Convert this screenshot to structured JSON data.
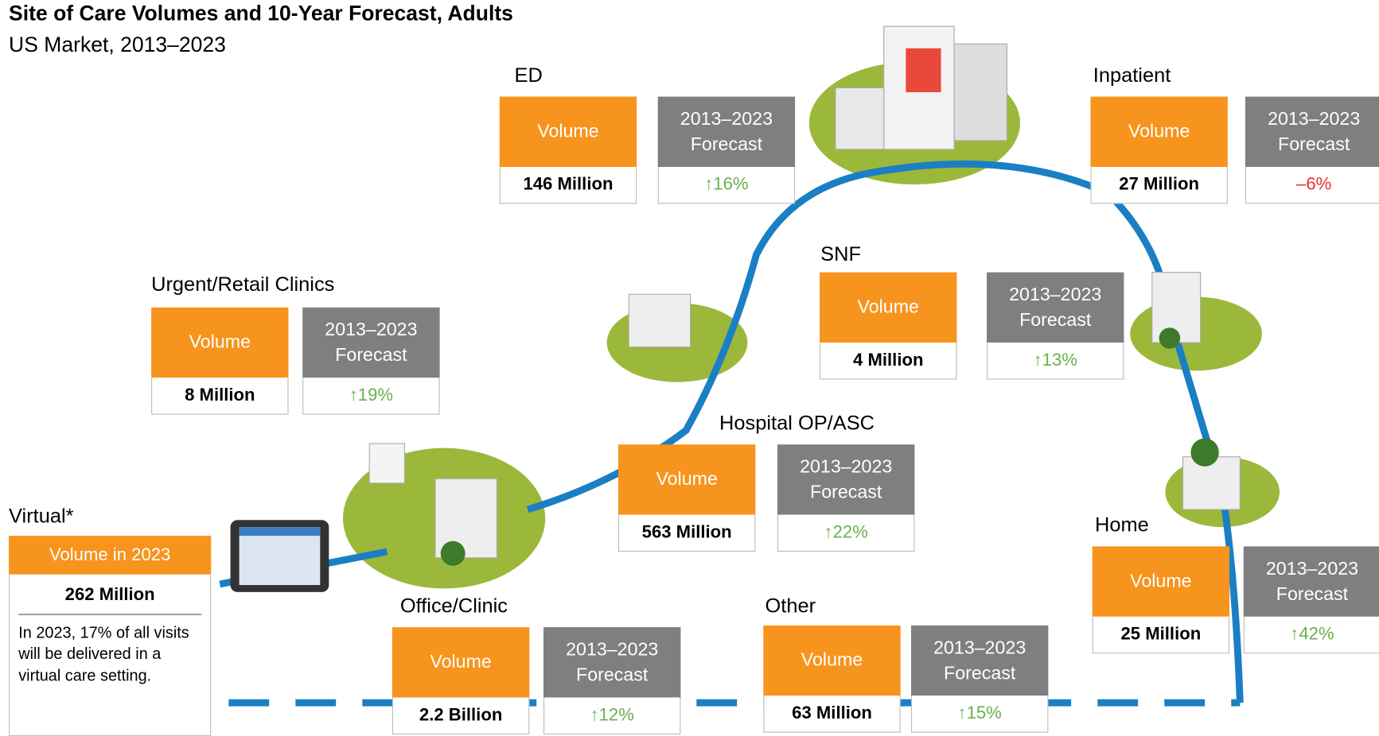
{
  "title": "Site of Care Volumes and 10-Year Forecast, Adults",
  "subtitle": "US Market, 2013–2023",
  "sites": [
    {
      "name": "ED",
      "volume_label": "Volume",
      "volume": "146 Million",
      "forecast_label": "2013–2023 Forecast",
      "forecast": "↑16%",
      "forecast_color": "#6ab04c"
    },
    {
      "name": "Inpatient",
      "volume_label": "Volume",
      "volume": "27 Million",
      "forecast_label": "2013–2023 Forecast",
      "forecast": "–6%",
      "forecast_color": "#e8302a"
    },
    {
      "name": "SNF",
      "volume_label": "Volume",
      "volume": "4 Million",
      "forecast_label": "2013–2023 Forecast",
      "forecast": "↑13%",
      "forecast_color": "#6ab04c"
    },
    {
      "name": "Urgent/Retail Clinics",
      "volume_label": "Volume",
      "volume": "8 Million",
      "forecast_label": "2013–2023 Forecast",
      "forecast": "↑19%",
      "forecast_color": "#6ab04c"
    },
    {
      "name": "Hospital OP/ASC",
      "volume_label": "Volume",
      "volume": "563 Million",
      "forecast_label": "2013–2023 Forecast",
      "forecast": "↑22%",
      "forecast_color": "#6ab04c"
    },
    {
      "name": "Home",
      "volume_label": "Volume",
      "volume": "25 Million",
      "forecast_label": "2013–2023 Forecast",
      "forecast": "↑42%",
      "forecast_color": "#6ab04c"
    },
    {
      "name": "Office/Clinic",
      "volume_label": "Volume",
      "volume": "2.2 Billion",
      "forecast_label": "2013–2023 Forecast",
      "forecast": "↑12%",
      "forecast_color": "#6ab04c"
    },
    {
      "name": "Other",
      "volume_label": "Volume",
      "volume": "63 Million",
      "forecast_label": "2013–2023 Forecast",
      "forecast": "↑15%",
      "forecast_color": "#6ab04c"
    }
  ],
  "virtual": {
    "name": "Virtual*",
    "volume_label": "Volume in 2023",
    "volume": "262 Million",
    "note": "In 2023, 17% of all visits will be delivered in a virtual care setting."
  }
}
